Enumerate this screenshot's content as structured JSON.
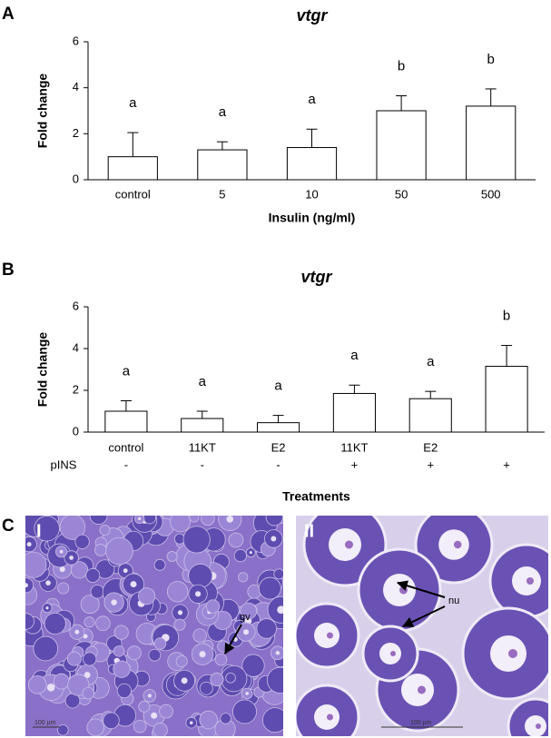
{
  "chart_data": [
    {
      "type": "bar",
      "panel": "A",
      "title": "vtgr",
      "y_label": "Fold change",
      "x_label": "Insulin (ng/ml)",
      "categories": [
        "control",
        "5",
        "10",
        "50",
        "500"
      ],
      "values": [
        1.0,
        1.3,
        1.4,
        3.0,
        3.2
      ],
      "errors": [
        1.05,
        0.35,
        0.8,
        0.65,
        0.75
      ],
      "annotations": [
        "a",
        "a",
        "a",
        "b",
        "b"
      ],
      "color": "#ffffff",
      "ylim": [
        0,
        6
      ],
      "yticks": [
        0,
        2,
        4,
        6
      ]
    },
    {
      "type": "bar",
      "panel": "B",
      "title": "vtgr",
      "y_label": "Fold change",
      "x_label": "Treatments",
      "categories": [
        "control",
        "11KT",
        "E2",
        "11KT",
        "E2",
        null
      ],
      "row_label": "pINS",
      "row_values": [
        "-",
        "-",
        "-",
        "+",
        "+",
        "+"
      ],
      "values": [
        1.0,
        0.65,
        0.45,
        1.85,
        1.6,
        3.15
      ],
      "errors": [
        0.5,
        0.35,
        0.35,
        0.4,
        0.35,
        1.0
      ],
      "annotations": [
        "a",
        "a",
        "a",
        "a",
        "a",
        "b"
      ],
      "color": "#ffffff",
      "ylim": [
        0,
        6
      ],
      "yticks": [
        0,
        2,
        4,
        6
      ]
    }
  ],
  "micrographs": {
    "panel": "C",
    "left": {
      "label": "I",
      "annotation": "gv",
      "scale": "100 µm"
    },
    "right": {
      "label": "II",
      "annotation": "nu",
      "scale": "100 µm"
    }
  }
}
